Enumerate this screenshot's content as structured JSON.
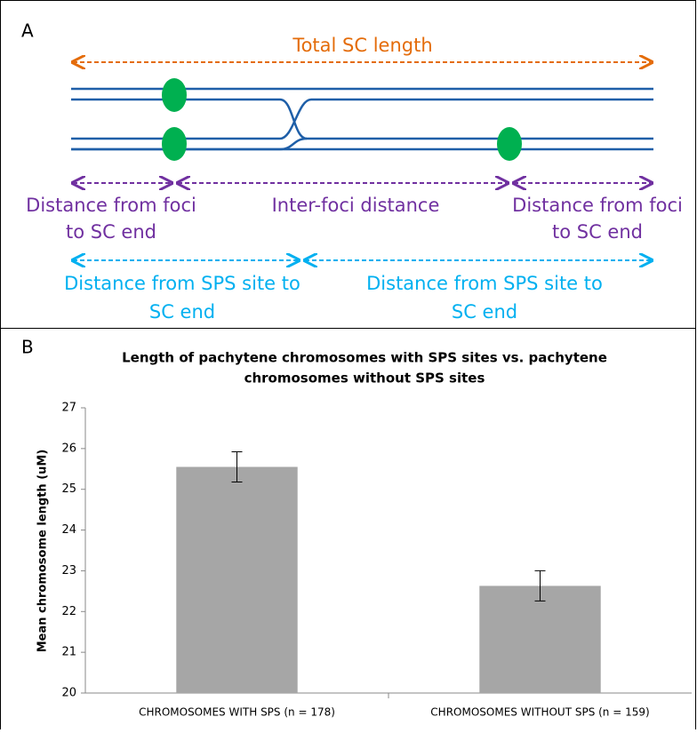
{
  "panel_a": {
    "label": "A",
    "total_label": "Total SC length",
    "foci_left": [
      "Distance from foci",
      "to SC end"
    ],
    "inter_foci": "Inter-foci distance",
    "foci_right": [
      "Distance from foci",
      "to SC end"
    ],
    "sps_left": [
      "Distance from SPS site to",
      "SC end"
    ],
    "sps_right": [
      "Distance from SPS site to",
      "SC end"
    ]
  },
  "panel_b": {
    "label": "B"
  },
  "chart_data": {
    "type": "bar",
    "title": [
      "Length of pachytene chromosomes with SPS sites vs. pachytene",
      "chromosomes without SPS sites"
    ],
    "y_label": "Mean chromosome length (uM)",
    "categories": [
      "CHROMOSOMES WITH SPS (n = 178)",
      "CHROMOSOMES WITHOUT SPS (n = 159)"
    ],
    "values": [
      25.55,
      22.63
    ],
    "errors": [
      0.37,
      0.37
    ],
    "color": "#a6a6a6",
    "ylim": [
      20,
      27
    ],
    "yticks": [
      20,
      21,
      22,
      23,
      24,
      25,
      26,
      27
    ]
  }
}
